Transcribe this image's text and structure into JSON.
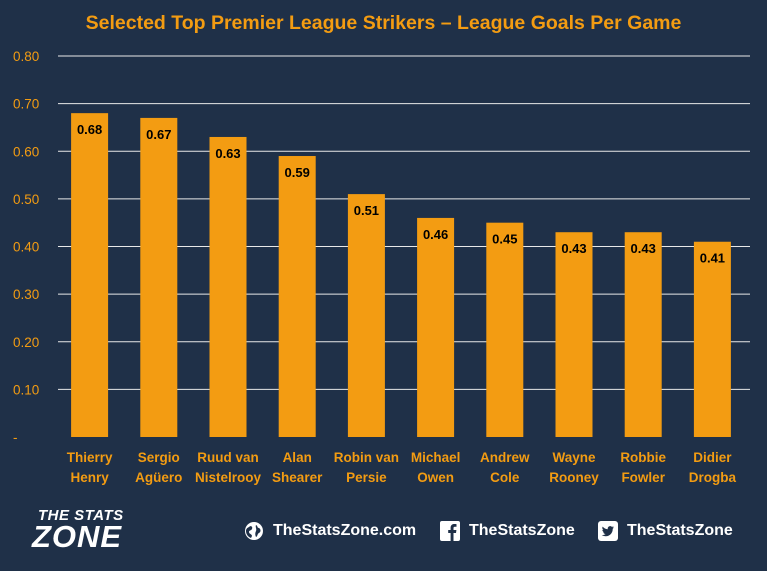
{
  "chart_data": {
    "type": "bar",
    "title": "Selected Top Premier League Strikers – League Goals Per Game",
    "categories": [
      [
        "Thierry",
        "Henry"
      ],
      [
        "Sergio",
        "Agüero"
      ],
      [
        "Ruud van",
        "Nistelrooy"
      ],
      [
        "Alan",
        "Shearer"
      ],
      [
        "Robin van",
        "Persie"
      ],
      [
        "Michael",
        "Owen"
      ],
      [
        "Andrew",
        "Cole"
      ],
      [
        "Wayne",
        "Rooney"
      ],
      [
        "Robbie",
        "Fowler"
      ],
      [
        "Didier",
        "Drogba"
      ]
    ],
    "values": [
      0.68,
      0.67,
      0.63,
      0.59,
      0.51,
      0.46,
      0.45,
      0.43,
      0.43,
      0.41
    ],
    "data_labels": [
      "0.68",
      "0.67",
      "0.63",
      "0.59",
      "0.51",
      "0.46",
      "0.45",
      "0.43",
      "0.43",
      "0.41"
    ],
    "ylim": [
      0,
      0.8
    ],
    "yticks": [
      0,
      0.1,
      0.2,
      0.3,
      0.4,
      0.5,
      0.6,
      0.7,
      0.8
    ],
    "ytick_labels": [
      "-",
      "0.10",
      "0.20",
      "0.30",
      "0.40",
      "0.50",
      "0.60",
      "0.70",
      "0.80"
    ],
    "xlabel": "",
    "ylabel": "",
    "grid": true,
    "legend": "none",
    "colors": {
      "background": "#1f3048",
      "bar": "#f39c12",
      "grid": "#e8e8e8",
      "title": "#f39c12",
      "axis_text": "#f39c12",
      "category_text": "#f39c12",
      "data_label": "#000000"
    }
  },
  "footer": {
    "logo_line1": "THE STATS",
    "logo_line2": "ZONE",
    "website": "TheStatsZone.com",
    "facebook": "TheStatsZone",
    "twitter": "TheStatsZone",
    "icons": [
      "globe-icon",
      "facebook-icon",
      "twitter-icon"
    ]
  }
}
